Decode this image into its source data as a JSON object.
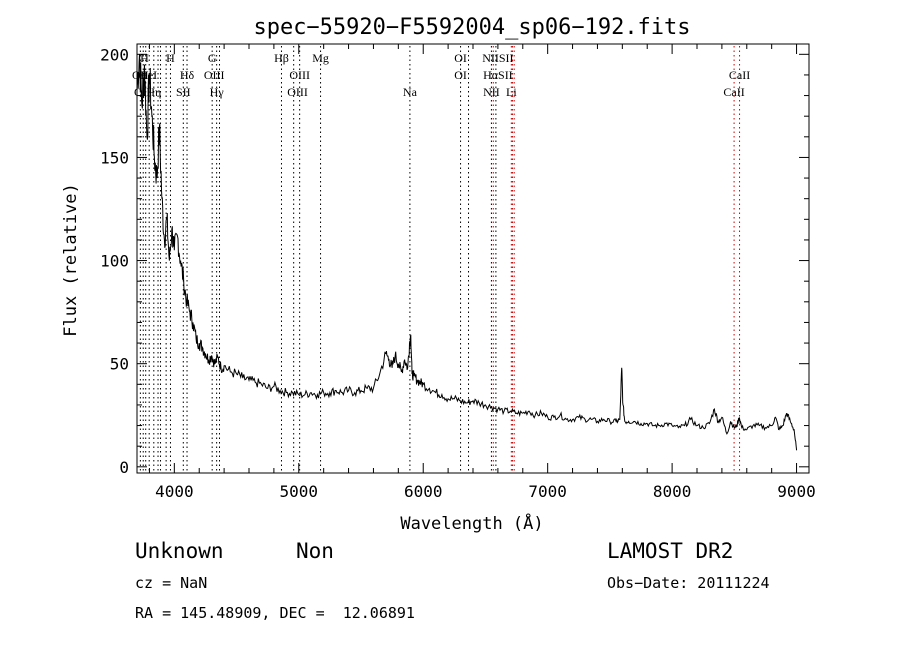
{
  "chart_data": {
    "type": "line",
    "title": "spec−55920−F5592004_sp06−192.fits",
    "xlabel": "Wavelength (Å)",
    "ylabel": "Flux (relative)",
    "xlim": [
      3700,
      9100
    ],
    "ylim": [
      -3,
      205
    ],
    "xticks": [
      4000,
      5000,
      6000,
      7000,
      8000,
      9000
    ],
    "yticks": [
      0,
      50,
      100,
      150,
      200
    ],
    "grid": false,
    "legend": "none",
    "series": [
      {
        "x": [
          3700,
          3720,
          3740,
          3760,
          3780,
          3800,
          3820,
          3840,
          3860,
          3880,
          3900,
          3920,
          3940,
          3960,
          3980,
          4000,
          4025,
          4050,
          4075,
          4100,
          4125,
          4150,
          4175,
          4200,
          4225,
          4250,
          4275,
          4300,
          4325,
          4350,
          4375,
          4400,
          4450,
          4500,
          4550,
          4600,
          4650,
          4700,
          4750,
          4800,
          4850,
          4900,
          4950,
          5000,
          5050,
          5100,
          5150,
          5200,
          5250,
          5300,
          5350,
          5400,
          5450,
          5500,
          5550,
          5600,
          5650,
          5700,
          5725,
          5750,
          5775,
          5800,
          5825,
          5850,
          5875,
          5890,
          5900,
          5910,
          5925,
          5950,
          5975,
          6000,
          6050,
          6100,
          6150,
          6200,
          6250,
          6300,
          6350,
          6400,
          6450,
          6500,
          6550,
          6600,
          6650,
          6700,
          6750,
          6800,
          6850,
          6900,
          6950,
          7000,
          7050,
          7100,
          7150,
          7200,
          7250,
          7300,
          7350,
          7400,
          7450,
          7500,
          7550,
          7580,
          7595,
          7605,
          7620,
          7650,
          7700,
          7750,
          7800,
          7850,
          7900,
          7950,
          8000,
          8050,
          8100,
          8150,
          8200,
          8250,
          8300,
          8340,
          8370,
          8400,
          8440,
          8470,
          8500,
          8520,
          8540,
          8560,
          8600,
          8650,
          8700,
          8750,
          8800,
          8830,
          8860,
          8890,
          8920,
          8950,
          8980,
          9000
        ],
        "y": [
          185,
          200,
          175,
          195,
          160,
          190,
          170,
          150,
          140,
          165,
          130,
          110,
          120,
          100,
          115,
          105,
          112,
          100,
          90,
          80,
          75,
          70,
          62,
          60,
          58,
          55,
          52,
          54,
          50,
          53,
          48,
          49,
          46,
          45,
          43,
          42,
          41,
          40,
          38,
          39,
          37,
          36,
          36,
          35,
          35,
          36,
          35,
          36,
          36,
          37,
          36,
          37,
          36,
          37,
          38,
          38,
          45,
          55,
          52,
          48,
          54,
          50,
          46,
          52,
          48,
          60,
          64,
          45,
          44,
          42,
          41,
          40,
          38,
          36,
          35,
          33,
          33,
          32,
          31,
          32,
          31,
          30,
          29,
          28,
          27,
          27,
          26,
          26,
          27,
          25,
          26,
          24,
          24,
          25,
          23,
          23,
          24,
          23,
          23,
          22,
          23,
          22,
          22,
          23,
          48,
          30,
          22,
          22,
          22,
          21,
          21,
          20,
          20,
          21,
          20,
          19,
          20,
          23,
          20,
          19,
          21,
          28,
          22,
          24,
          16,
          22,
          19,
          20,
          24,
          19,
          18,
          20,
          20,
          19,
          20,
          24,
          18,
          20,
          26,
          22,
          18,
          8
        ]
      }
    ],
    "annotations": {
      "top_row1": [
        "H",
        "G",
        "Hβ",
        "Mg",
        "OI",
        "NIISII"
      ],
      "top_row2": [
        "OII",
        "HeI",
        "Hδ",
        "OIII",
        "OIII",
        "OI",
        "HαSII",
        "CaII"
      ],
      "top_row3": [
        "OI",
        "Hη",
        "SII",
        "Hγ",
        "OIII",
        "Na",
        "NII",
        "Li",
        "CaII"
      ]
    }
  },
  "footer": {
    "class_label": "Unknown",
    "subclass_label": "Non",
    "survey_label": "LAMOST DR2",
    "cz_text": "cz = NaN",
    "obs_date_text": "Obs−Date: 20111224",
    "coords_text": "RA = 145.48909, DEC =  12.06891"
  }
}
